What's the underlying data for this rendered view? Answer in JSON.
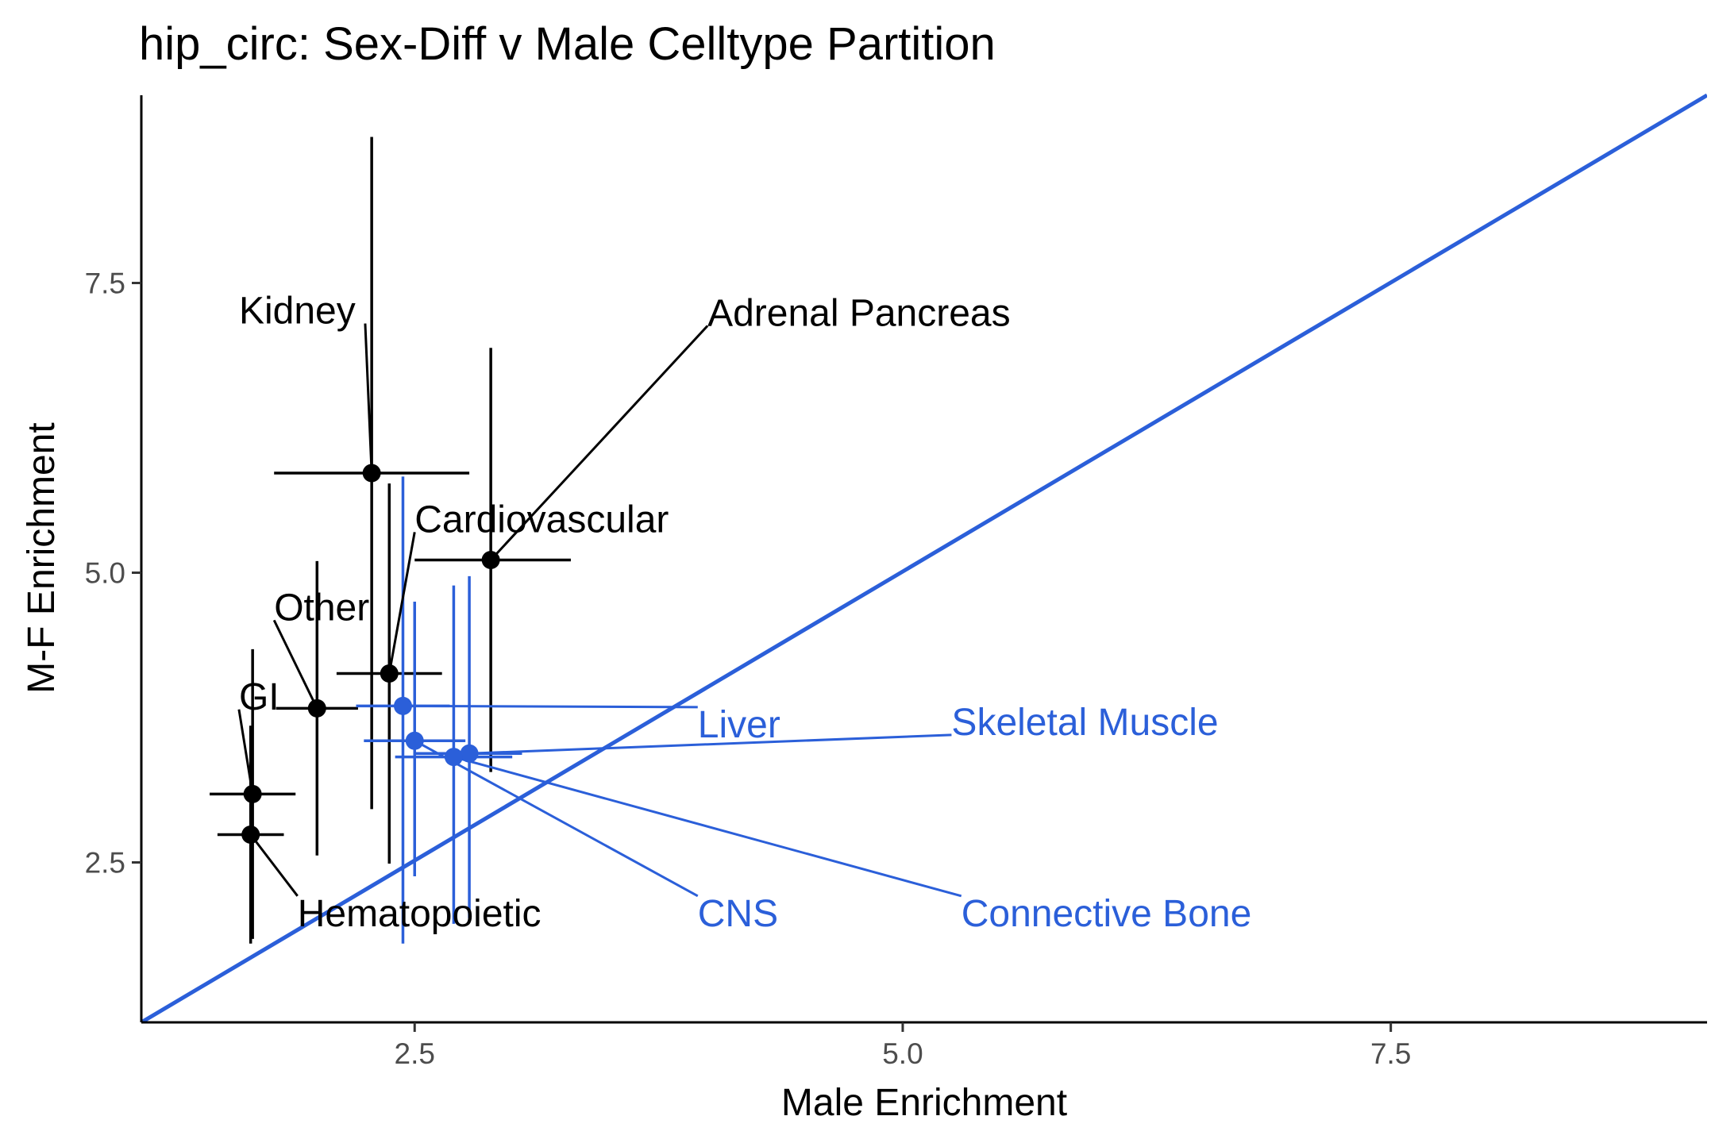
{
  "chart_data": {
    "type": "scatter",
    "title": "hip_circ: Sex-Diff v Male Celltype Partition",
    "xlabel": "Male Enrichment",
    "ylabel": "M-F Enrichment",
    "xlim": [
      1.1,
      9.12
    ],
    "ylim": [
      1.12,
      9.12
    ],
    "xticks": [
      2.5,
      5.0,
      7.5
    ],
    "xtick_labels": [
      "2.5",
      "5.0",
      "7.5"
    ],
    "yticks": [
      2.5,
      5.0,
      7.5
    ],
    "ytick_labels": [
      "2.5",
      "5.0",
      "7.5"
    ],
    "grid": false,
    "reference_line": {
      "slope": 1,
      "intercept": 0,
      "color": "#2b5fd9"
    },
    "colors": {
      "black": "#000000",
      "blue": "#2b5fd9"
    },
    "points": [
      {
        "label": "Kidney",
        "x": 2.28,
        "y": 5.86,
        "xmin": 1.78,
        "xmax": 2.78,
        "ymin": 2.96,
        "ymax": 8.76,
        "color": "#000000",
        "label_x": 1.6,
        "label_y": 7.15
      },
      {
        "label": "Adrenal Pancreas",
        "x": 2.89,
        "y": 5.11,
        "xmin": 2.5,
        "xmax": 3.3,
        "ymin": 3.28,
        "ymax": 6.94,
        "color": "#000000",
        "label_x": 4.0,
        "label_y": 7.13
      },
      {
        "label": "Cardiovascular",
        "x": 2.37,
        "y": 4.13,
        "xmin": 2.1,
        "xmax": 2.64,
        "ymin": 2.49,
        "ymax": 5.77,
        "color": "#000000",
        "label_x": 2.5,
        "label_y": 5.35
      },
      {
        "label": "Other",
        "x": 2.0,
        "y": 3.83,
        "xmin": 1.79,
        "xmax": 2.21,
        "ymin": 2.56,
        "ymax": 5.1,
        "color": "#000000",
        "label_x": 1.78,
        "label_y": 4.59
      },
      {
        "label": "GI",
        "x": 1.67,
        "y": 3.09,
        "xmin": 1.45,
        "xmax": 1.89,
        "ymin": 1.84,
        "ymax": 4.34,
        "color": "#000000",
        "label_x": 1.6,
        "label_y": 3.82
      },
      {
        "label": "Hematopoietic",
        "x": 1.66,
        "y": 2.74,
        "xmin": 1.49,
        "xmax": 1.83,
        "ymin": 1.8,
        "ymax": 3.68,
        "color": "#000000",
        "label_x": 1.9,
        "label_y": 1.95
      },
      {
        "label": "Liver",
        "x": 2.44,
        "y": 3.85,
        "xmin": 2.2,
        "xmax": 2.68,
        "ymin": 1.8,
        "ymax": 5.83,
        "color": "#2b5fd9",
        "label_x": 3.95,
        "label_y": 3.58
      },
      {
        "label": "Skeletal Muscle",
        "x": 2.78,
        "y": 3.44,
        "xmin": 2.5,
        "xmax": 3.05,
        "ymin": 2.02,
        "ymax": 4.97,
        "color": "#2b5fd9",
        "label_x": 5.25,
        "label_y": 3.6
      },
      {
        "label": "CNS",
        "x": 2.5,
        "y": 3.55,
        "xmin": 2.24,
        "xmax": 2.76,
        "ymin": 2.38,
        "ymax": 4.75,
        "color": "#2b5fd9",
        "label_x": 3.95,
        "label_y": 1.95
      },
      {
        "label": "Connective Bone",
        "x": 2.7,
        "y": 3.41,
        "xmin": 2.4,
        "xmax": 3.0,
        "ymin": 1.97,
        "ymax": 4.89,
        "color": "#2b5fd9",
        "label_x": 5.3,
        "label_y": 1.95
      }
    ]
  }
}
